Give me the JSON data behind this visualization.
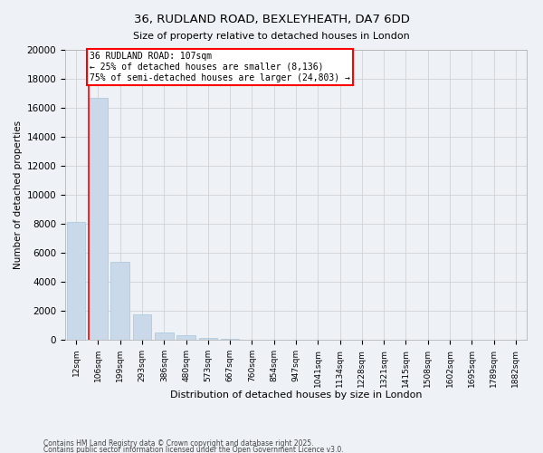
{
  "title1": "36, RUDLAND ROAD, BEXLEYHEATH, DA7 6DD",
  "title2": "Size of property relative to detached houses in London",
  "xlabel": "Distribution of detached houses by size in London",
  "ylabel": "Number of detached properties",
  "categories": [
    "12sqm",
    "106sqm",
    "199sqm",
    "293sqm",
    "386sqm",
    "480sqm",
    "573sqm",
    "667sqm",
    "760sqm",
    "854sqm",
    "947sqm",
    "1041sqm",
    "1134sqm",
    "1228sqm",
    "1321sqm",
    "1415sqm",
    "1508sqm",
    "1602sqm",
    "1695sqm",
    "1789sqm",
    "1882sqm"
  ],
  "values": [
    8100,
    16700,
    5400,
    1750,
    500,
    300,
    150,
    50,
    0,
    0,
    0,
    0,
    0,
    0,
    0,
    0,
    0,
    0,
    0,
    0,
    0
  ],
  "bar_color": "#c9d9ea",
  "bar_edge_color": "#a8c4d8",
  "property_line_color": "red",
  "annotation_line1": "36 RUDLAND ROAD: 107sqm",
  "annotation_line2": "← 25% of detached houses are smaller (8,136)",
  "annotation_line3": "75% of semi-detached houses are larger (24,803) →",
  "ylim": [
    0,
    20000
  ],
  "yticks": [
    0,
    2000,
    4000,
    6000,
    8000,
    10000,
    12000,
    14000,
    16000,
    18000,
    20000
  ],
  "grid_color": "#cccccc",
  "background_color": "#eef2f7",
  "footnote1": "Contains HM Land Registry data © Crown copyright and database right 2025.",
  "footnote2": "Contains public sector information licensed under the Open Government Licence v3.0."
}
